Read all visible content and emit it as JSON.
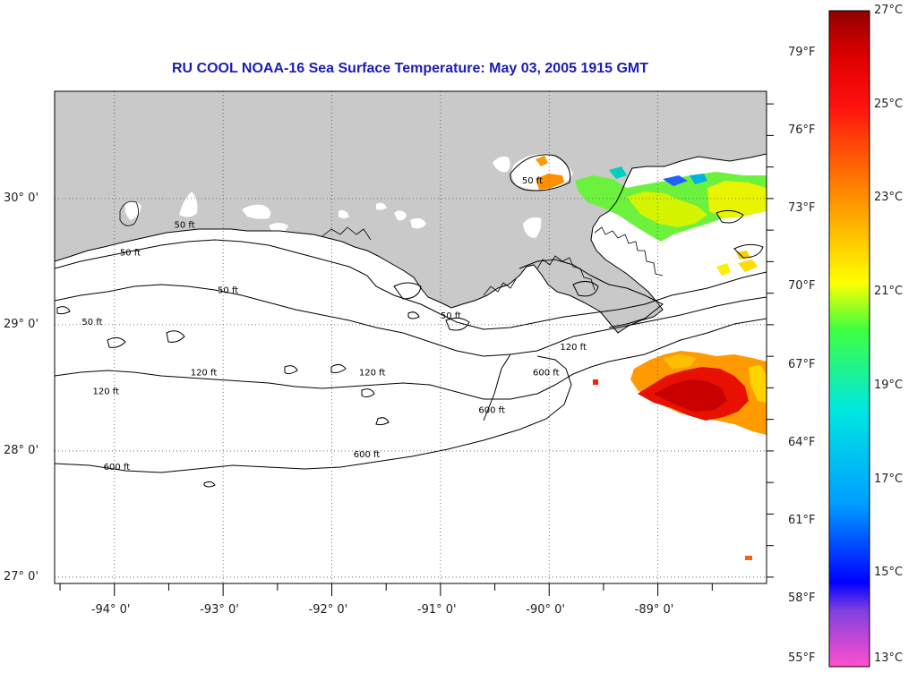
{
  "title": "RU COOL  NOAA-16  Sea Surface Temperature:  May 03, 2005 1915 GMT",
  "colors": {
    "title": "#1c1cb4",
    "land": "#c9c9c9",
    "water": "#ffffff",
    "contour": "#000000",
    "grid": "#555555"
  },
  "map": {
    "lat_range": [
      26.95,
      30.85
    ],
    "lon_range": [
      -94.55,
      -88.0
    ],
    "lat_labels": [
      "27° 0'",
      "28° 0'",
      "29° 0'",
      "30° 0'"
    ],
    "lon_labels": [
      "-94° 0'",
      "-93° 0'",
      "-92° 0'",
      "-91° 0'",
      "-90° 0'",
      "-89° 0'"
    ],
    "contour_labels": [
      {
        "text": "50 ft",
        "lon": -93.45,
        "lat": 29.77
      },
      {
        "text": "50 ft",
        "lon": -93.95,
        "lat": 29.55
      },
      {
        "text": "50 ft",
        "lon": -93.05,
        "lat": 29.25
      },
      {
        "text": "50 ft",
        "lon": -91.0,
        "lat": 29.05
      },
      {
        "text": "50 ft",
        "lon": -94.3,
        "lat": 29.0
      },
      {
        "text": "50 ft",
        "lon": -90.25,
        "lat": 30.12
      },
      {
        "text": "120 ft",
        "lon": -93.3,
        "lat": 28.6
      },
      {
        "text": "120 ft",
        "lon": -94.2,
        "lat": 28.45
      },
      {
        "text": "120 ft",
        "lon": -91.75,
        "lat": 28.6
      },
      {
        "text": "120 ft",
        "lon": -89.9,
        "lat": 28.8
      },
      {
        "text": "600 ft",
        "lon": -90.65,
        "lat": 28.3
      },
      {
        "text": "600 ft",
        "lon": -91.8,
        "lat": 27.95
      },
      {
        "text": "600 ft",
        "lon": -94.1,
        "lat": 27.85
      },
      {
        "text": "600 ft",
        "lon": -90.15,
        "lat": 28.6
      }
    ]
  },
  "colorbar": {
    "fahrenheit_labels": [
      "55°F",
      "58°F",
      "61°F",
      "64°F",
      "67°F",
      "70°F",
      "73°F",
      "76°F",
      "79°F"
    ],
    "celsius_labels": [
      "13°C",
      "15°C",
      "17°C",
      "19°C",
      "21°C",
      "23°C",
      "25°C",
      "27°C"
    ],
    "range_c": [
      13,
      27
    ],
    "stops": [
      {
        "c": 13.0,
        "color": "#ff50cc"
      },
      {
        "c": 14.2,
        "color": "#8040e0"
      },
      {
        "c": 14.8,
        "color": "#0000ff"
      },
      {
        "c": 16.5,
        "color": "#00a0ff"
      },
      {
        "c": 18.5,
        "color": "#00e8e0"
      },
      {
        "c": 20.2,
        "color": "#40ff40"
      },
      {
        "c": 21.2,
        "color": "#ffff00"
      },
      {
        "c": 23.0,
        "color": "#ff9000"
      },
      {
        "c": 25.0,
        "color": "#ff1010"
      },
      {
        "c": 26.0,
        "color": "#e00000"
      },
      {
        "c": 27.0,
        "color": "#900000"
      }
    ]
  }
}
